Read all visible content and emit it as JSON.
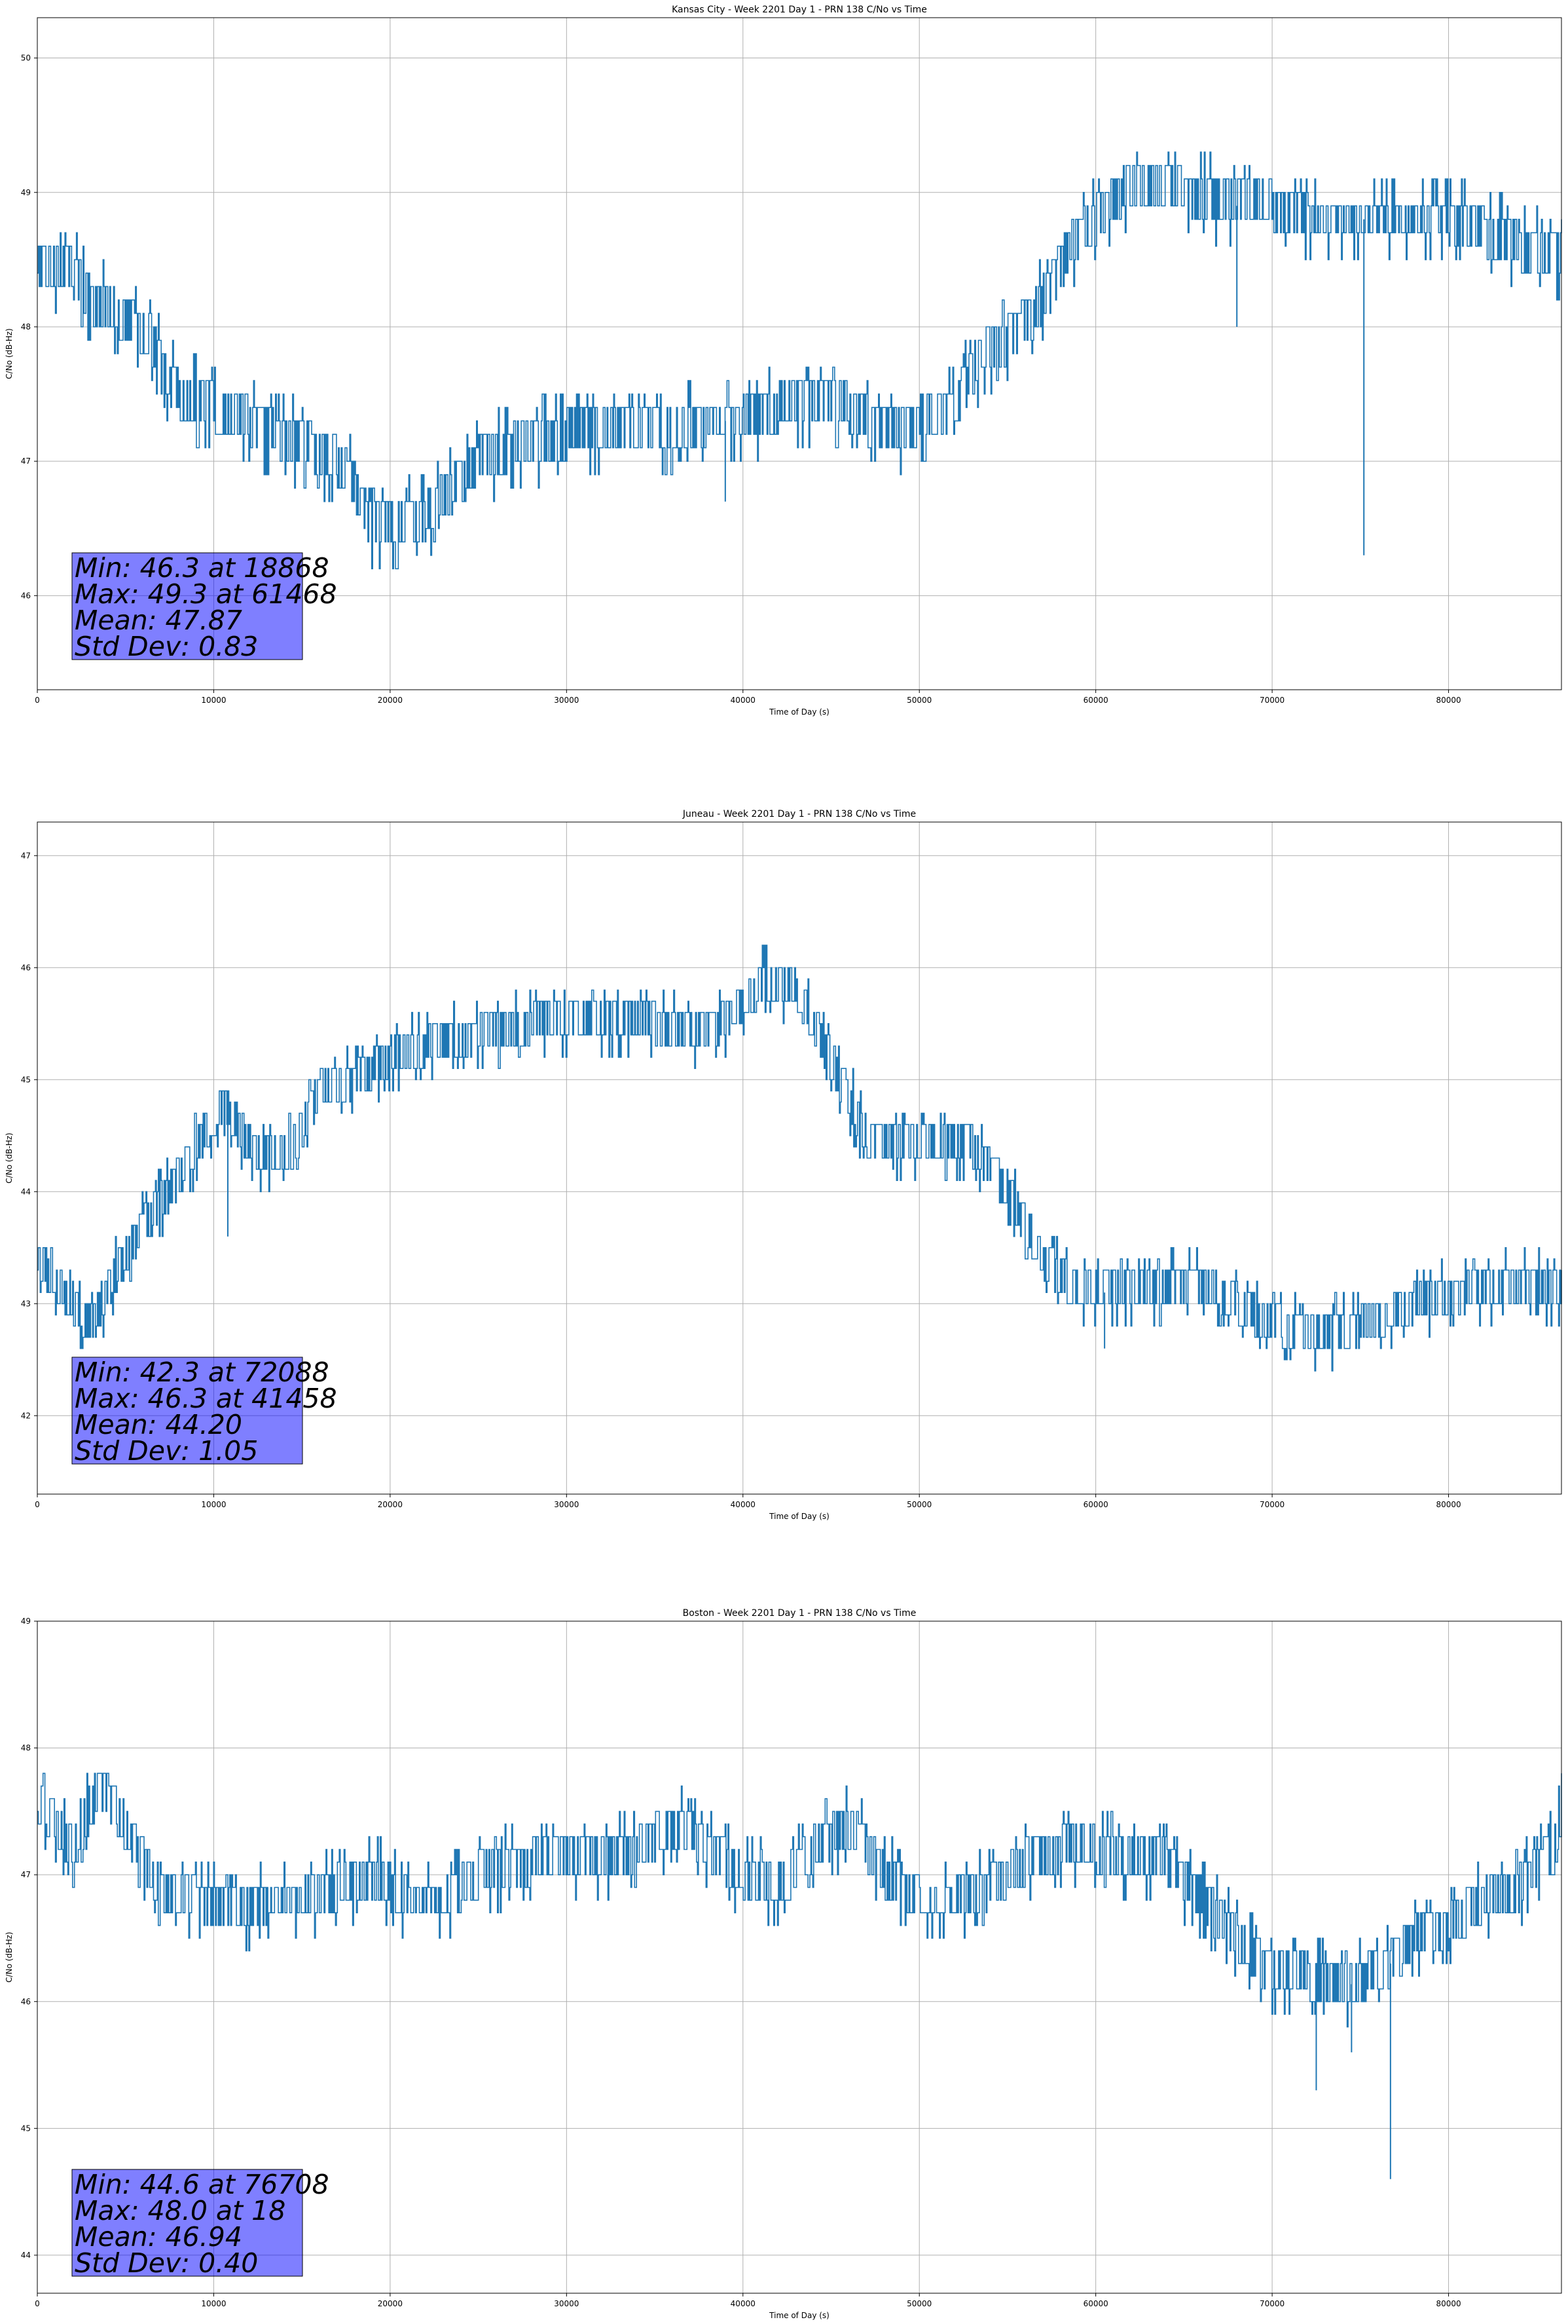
{
  "charts": [
    {
      "title": "Kansas City - Week 2201 Day 1 - PRN 138 C/No vs Time",
      "xlabel": "Time of Day (s)",
      "ylabel": "C/No (dB-Hz)",
      "stats": [
        "Min: 46.3 at 18868",
        "Max: 49.3 at 61468",
        "Mean: 47.87",
        "Std Dev: 0.83"
      ]
    },
    {
      "title": "Juneau - Week 2201 Day 1 - PRN 138 C/No vs Time",
      "xlabel": "Time of Day (s)",
      "ylabel": "C/No (dB-Hz)",
      "stats": [
        "Min: 42.3 at 72088",
        "Max: 46.3 at 41458",
        "Mean: 44.20",
        "Std Dev: 1.05"
      ]
    },
    {
      "title": "Boston - Week 2201 Day 1 - PRN 138 C/No vs Time",
      "xlabel": "Time of Day (s)",
      "ylabel": "C/No (dB-Hz)",
      "stats": [
        "Min: 44.6 at 76708",
        "Max: 48.0 at 18",
        "Mean: 46.94",
        "Std Dev: 0.40"
      ]
    }
  ],
  "chart_data": [
    {
      "type": "line",
      "title": "Kansas City - Week 2201 Day 1 - PRN 138 C/No vs Time",
      "xlabel": "Time of Day (s)",
      "ylabel": "C/No (dB-Hz)",
      "xlim": [
        0,
        86400
      ],
      "ylim": [
        45.3,
        50.3
      ],
      "xticks": [
        0,
        10000,
        20000,
        30000,
        40000,
        50000,
        60000,
        70000,
        80000
      ],
      "yticks": [
        46,
        47,
        48,
        49,
        50
      ],
      "grid": true,
      "color": "#1f77b4",
      "x": [
        0,
        2000,
        3000,
        4500,
        5500,
        6500,
        7000,
        8000,
        10000,
        12000,
        13500,
        15500,
        17000,
        18000,
        18868,
        20000,
        22000,
        23500,
        25000,
        27000,
        30000,
        34000,
        38000,
        40000,
        42000,
        44000,
        46000,
        48000,
        50000,
        52000,
        53500,
        55000,
        56500,
        57500,
        58500,
        60000,
        61468,
        63000,
        65000,
        68000,
        70000,
        72000,
        75000,
        78000,
        80000,
        82000,
        84000,
        86400
      ],
      "y": [
        48.5,
        48.4,
        48.2,
        48.1,
        48.0,
        47.9,
        47.7,
        47.5,
        47.4,
        47.3,
        47.2,
        47.1,
        47.0,
        46.8,
        46.5,
        46.5,
        46.6,
        46.8,
        47.0,
        47.1,
        47.2,
        47.2,
        47.3,
        47.3,
        47.4,
        47.4,
        47.4,
        47.2,
        47.3,
        47.4,
        47.8,
        47.9,
        48.1,
        48.3,
        48.6,
        48.8,
        49.0,
        49.0,
        49.0,
        48.9,
        48.9,
        48.8,
        48.8,
        48.8,
        48.8,
        48.7,
        48.6,
        48.5
      ],
      "dips": [
        [
          68000,
          48.0
        ],
        [
          75200,
          46.3
        ],
        [
          39000,
          46.7
        ]
      ]
    },
    {
      "type": "line",
      "title": "Juneau - Week 2201 Day 1 - PRN 138 C/No vs Time",
      "xlabel": "Time of Day (s)",
      "ylabel": "C/No (dB-Hz)",
      "xlim": [
        0,
        86400
      ],
      "ylim": [
        41.3,
        47.3
      ],
      "xticks": [
        0,
        10000,
        20000,
        30000,
        40000,
        50000,
        60000,
        70000,
        80000
      ],
      "yticks": [
        42,
        43,
        44,
        45,
        46,
        47
      ],
      "grid": true,
      "color": "#1f77b4",
      "x": [
        0,
        1500,
        3000,
        4500,
        6000,
        7500,
        9000,
        10500,
        12500,
        14500,
        16000,
        18000,
        20000,
        22000,
        25000,
        28000,
        31000,
        35000,
        38000,
        40000,
        41458,
        43000,
        44000,
        45500,
        47000,
        50000,
        53000,
        55000,
        57000,
        59000,
        62000,
        66000,
        69000,
        72088,
        75000,
        78000,
        81000,
        84000,
        86400
      ],
      "y": [
        43.4,
        43.1,
        42.8,
        43.3,
        43.7,
        44.0,
        44.4,
        44.8,
        44.3,
        44.4,
        44.9,
        45.0,
        45.2,
        45.3,
        45.4,
        45.5,
        45.5,
        45.5,
        45.4,
        45.7,
        45.9,
        45.8,
        45.5,
        45.0,
        44.5,
        44.4,
        44.4,
        44.0,
        43.4,
        43.1,
        43.1,
        43.2,
        42.9,
        42.7,
        42.8,
        43.0,
        43.1,
        43.2,
        43.1
      ],
      "dips": [
        [
          10800,
          43.6
        ],
        [
          60500,
          42.6
        ]
      ]
    },
    {
      "type": "line",
      "title": "Boston - Week 2201 Day 1 - PRN 138 C/No vs Time",
      "xlabel": "Time of Day (s)",
      "ylabel": "C/No (dB-Hz)",
      "xlim": [
        0,
        86400
      ],
      "ylim": [
        43.7,
        49.0
      ],
      "xticks": [
        0,
        10000,
        20000,
        30000,
        40000,
        50000,
        60000,
        70000,
        80000
      ],
      "yticks": [
        44,
        45,
        46,
        47,
        48,
        49
      ],
      "grid": true,
      "color": "#1f77b4",
      "x": [
        0,
        1000,
        2000,
        3500,
        4500,
        6000,
        7000,
        9000,
        11000,
        13000,
        15000,
        17000,
        19000,
        21000,
        23000,
        25000,
        28000,
        31000,
        34000,
        35000,
        36500,
        38000,
        40000,
        42000,
        44000,
        46000,
        48000,
        50000,
        52000,
        54000,
        56000,
        58000,
        60000,
        62000,
        64000,
        66000,
        68000,
        70000,
        72000,
        74000,
        76708,
        78000,
        80000,
        82000,
        84000,
        86000,
        86400
      ],
      "y": [
        47.6,
        47.4,
        47.2,
        47.7,
        47.5,
        47.1,
        46.9,
        46.8,
        46.7,
        46.8,
        46.8,
        46.9,
        47.0,
        46.8,
        46.8,
        47.0,
        47.1,
        47.1,
        47.2,
        47.3,
        47.4,
        47.2,
        47.0,
        46.9,
        47.2,
        47.4,
        47.0,
        46.8,
        46.8,
        46.9,
        47.1,
        47.2,
        47.2,
        47.1,
        47.1,
        46.8,
        46.5,
        46.2,
        46.2,
        46.1,
        46.3,
        46.5,
        46.6,
        46.8,
        46.9,
        47.2,
        47.5
      ],
      "dips": [
        [
          72500,
          45.3
        ],
        [
          76708,
          44.6
        ],
        [
          74500,
          45.6
        ]
      ]
    }
  ]
}
